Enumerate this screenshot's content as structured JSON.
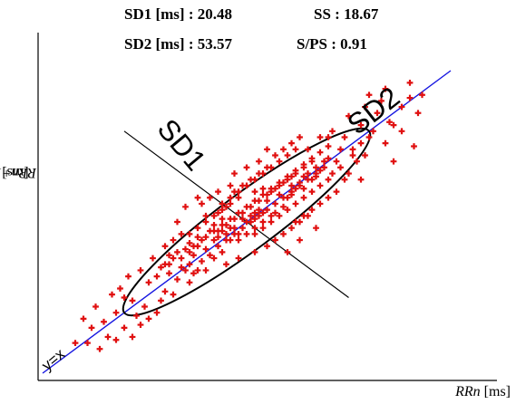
{
  "stats": {
    "sd1": "SD1 [ms] : 20.48",
    "ss": "SS : 18.67",
    "sd2": "SD2 [ms] : 53.57",
    "sps": "S/PS : 0.91"
  },
  "chart_data": {
    "type": "scatter",
    "title": "",
    "xlabel_var": "RRn",
    "xlabel_unit": " [ms]",
    "ylabel_var": "RRn+1",
    "ylabel_unit": " [ms]",
    "xlim": [
      0,
      100
    ],
    "ylim": [
      0,
      100
    ],
    "grid": false,
    "legend": "none",
    "marker": "+",
    "identity_line_label": "y=x",
    "axis_labels": {
      "sd1": "SD1",
      "sd2": "SD2"
    },
    "ellipse": {
      "center": [
        50,
        50
      ],
      "sd1_halfwidth": 10,
      "sd2_halfwidth": 30
    },
    "points": [
      [
        8,
        10
      ],
      [
        12,
        15
      ],
      [
        15,
        17
      ],
      [
        18,
        20
      ],
      [
        20,
        25
      ],
      [
        22,
        24
      ],
      [
        19,
        28
      ],
      [
        25,
        22
      ],
      [
        26,
        30
      ],
      [
        28,
        32
      ],
      [
        30,
        27
      ],
      [
        31,
        36
      ],
      [
        33,
        31
      ],
      [
        34,
        38
      ],
      [
        35,
        34
      ],
      [
        36,
        40
      ],
      [
        37,
        33
      ],
      [
        38,
        42
      ],
      [
        39,
        37
      ],
      [
        40,
        45
      ],
      [
        41,
        39
      ],
      [
        42,
        47
      ],
      [
        43,
        42
      ],
      [
        44,
        49
      ],
      [
        45,
        44
      ],
      [
        46,
        51
      ],
      [
        47,
        46
      ],
      [
        48,
        53
      ],
      [
        49,
        48
      ],
      [
        50,
        55
      ],
      [
        51,
        50
      ],
      [
        52,
        57
      ],
      [
        53,
        52
      ],
      [
        54,
        59
      ],
      [
        55,
        54
      ],
      [
        56,
        61
      ],
      [
        57,
        56
      ],
      [
        58,
        63
      ],
      [
        59,
        58
      ],
      [
        60,
        65
      ],
      [
        61,
        60
      ],
      [
        62,
        67
      ],
      [
        63,
        62
      ],
      [
        64,
        69
      ],
      [
        65,
        64
      ],
      [
        66,
        71
      ],
      [
        67,
        66
      ],
      [
        68,
        73
      ],
      [
        69,
        68
      ],
      [
        70,
        75
      ],
      [
        72,
        70
      ],
      [
        74,
        78
      ],
      [
        76,
        74
      ],
      [
        78,
        82
      ],
      [
        80,
        78
      ],
      [
        82,
        86
      ],
      [
        85,
        83
      ],
      [
        88,
        88
      ],
      [
        90,
        91
      ],
      [
        93,
        92
      ],
      [
        44,
        56
      ],
      [
        46,
        58
      ],
      [
        48,
        60
      ],
      [
        50,
        62
      ],
      [
        52,
        64
      ],
      [
        54,
        66
      ],
      [
        56,
        68
      ],
      [
        58,
        70
      ],
      [
        60,
        72
      ],
      [
        62,
        74
      ],
      [
        40,
        50
      ],
      [
        42,
        52
      ],
      [
        44,
        54
      ],
      [
        46,
        56
      ],
      [
        48,
        58
      ],
      [
        52,
        46
      ],
      [
        54,
        48
      ],
      [
        56,
        50
      ],
      [
        58,
        52
      ],
      [
        60,
        54
      ],
      [
        62,
        56
      ],
      [
        64,
        58
      ],
      [
        66,
        60
      ],
      [
        68,
        62
      ],
      [
        70,
        64
      ],
      [
        36,
        46
      ],
      [
        38,
        48
      ],
      [
        40,
        52
      ],
      [
        42,
        44
      ],
      [
        44,
        40
      ],
      [
        30,
        42
      ],
      [
        32,
        44
      ],
      [
        34,
        46
      ],
      [
        36,
        36
      ],
      [
        38,
        34
      ],
      [
        62,
        50
      ],
      [
        64,
        52
      ],
      [
        66,
        54
      ],
      [
        68,
        56
      ],
      [
        70,
        58
      ],
      [
        48,
        44
      ],
      [
        50,
        46
      ],
      [
        52,
        48
      ],
      [
        54,
        50
      ],
      [
        56,
        52
      ],
      [
        47,
        60
      ],
      [
        49,
        62
      ],
      [
        51,
        64
      ],
      [
        53,
        66
      ],
      [
        55,
        68
      ],
      [
        57,
        44
      ],
      [
        59,
        46
      ],
      [
        61,
        48
      ],
      [
        63,
        50
      ],
      [
        65,
        52
      ],
      [
        43,
        47
      ],
      [
        45,
        49
      ],
      [
        47,
        51
      ],
      [
        49,
        53
      ],
      [
        51,
        55
      ],
      [
        53,
        57
      ],
      [
        55,
        59
      ],
      [
        57,
        61
      ],
      [
        59,
        63
      ],
      [
        61,
        65
      ],
      [
        58,
        62
      ],
      [
        60,
        64
      ],
      [
        62,
        66
      ],
      [
        64,
        68
      ],
      [
        66,
        70
      ],
      [
        35,
        55
      ],
      [
        38,
        58
      ],
      [
        33,
        50
      ],
      [
        60,
        40
      ],
      [
        63,
        44
      ],
      [
        67,
        48
      ],
      [
        72,
        60
      ],
      [
        74,
        64
      ],
      [
        71,
        80
      ],
      [
        76,
        72
      ],
      [
        78,
        76
      ],
      [
        81,
        80
      ],
      [
        84,
        76
      ],
      [
        86,
        82
      ],
      [
        79,
        88
      ],
      [
        83,
        90
      ],
      [
        88,
        80
      ],
      [
        91,
        75
      ],
      [
        75,
        85
      ],
      [
        70,
        78
      ],
      [
        27,
        38
      ],
      [
        29,
        24
      ],
      [
        24,
        34
      ],
      [
        21,
        32
      ],
      [
        17,
        26
      ],
      [
        13,
        22
      ],
      [
        10,
        18
      ],
      [
        26,
        18
      ],
      [
        32,
        26
      ],
      [
        36,
        30
      ],
      [
        45,
        36
      ],
      [
        42,
        38
      ],
      [
        40,
        34
      ],
      [
        52,
        40
      ],
      [
        55,
        42
      ],
      [
        48,
        38
      ],
      [
        46,
        62
      ],
      [
        43,
        60
      ],
      [
        41,
        58
      ],
      [
        39,
        56
      ],
      [
        57,
        72
      ],
      [
        55,
        74
      ],
      [
        53,
        70
      ],
      [
        50,
        68
      ],
      [
        47,
        66
      ],
      [
        65,
        74
      ],
      [
        68,
        78
      ],
      [
        63,
        78
      ],
      [
        61,
        76
      ],
      [
        59,
        74
      ],
      [
        73,
        68
      ],
      [
        77,
        70
      ],
      [
        79,
        72
      ],
      [
        75,
        66
      ],
      [
        71,
        66
      ],
      [
        20,
        15
      ],
      [
        23,
        19
      ],
      [
        16,
        12
      ],
      [
        11,
        10
      ],
      [
        28,
        20
      ],
      [
        31,
        33
      ],
      [
        34,
        35
      ],
      [
        37,
        39
      ],
      [
        40,
        41
      ],
      [
        43,
        45
      ],
      [
        46,
        48
      ],
      [
        49,
        51
      ],
      [
        52,
        53
      ],
      [
        55,
        57
      ],
      [
        58,
        59
      ],
      [
        61,
        62
      ],
      [
        64,
        65
      ],
      [
        67,
        68
      ],
      [
        70,
        71
      ],
      [
        73,
        74
      ],
      [
        50,
        50
      ],
      [
        51,
        52
      ],
      [
        52,
        51
      ],
      [
        53,
        54
      ],
      [
        54,
        53
      ],
      [
        57,
        53
      ],
      [
        59,
        55
      ],
      [
        56,
        60
      ],
      [
        54,
        61
      ],
      [
        52,
        60
      ],
      [
        45,
        55
      ],
      [
        44,
        51
      ],
      [
        43,
        53
      ],
      [
        42,
        49
      ],
      [
        41,
        47
      ],
      [
        48,
        46
      ],
      [
        47,
        48
      ],
      [
        46,
        44
      ],
      [
        45,
        46
      ],
      [
        44,
        47
      ],
      [
        60,
        58
      ],
      [
        61,
        59
      ],
      [
        62,
        61
      ],
      [
        63,
        63
      ],
      [
        64,
        61
      ],
      [
        65,
        66
      ],
      [
        66,
        64
      ],
      [
        67,
        65
      ],
      [
        68,
        67
      ],
      [
        69,
        70
      ],
      [
        38,
        45
      ],
      [
        39,
        44
      ],
      [
        37,
        42
      ],
      [
        36,
        43
      ],
      [
        35,
        41
      ],
      [
        33,
        40
      ],
      [
        32,
        38
      ],
      [
        31,
        39
      ],
      [
        30,
        36
      ],
      [
        29,
        35
      ],
      [
        90,
        96
      ],
      [
        84,
        94
      ],
      [
        80,
        92
      ],
      [
        92,
        86
      ],
      [
        86,
        70
      ],
      [
        78,
        64
      ],
      [
        24,
        16
      ],
      [
        18,
        11
      ],
      [
        14,
        8
      ],
      [
        22,
        12
      ]
    ]
  }
}
